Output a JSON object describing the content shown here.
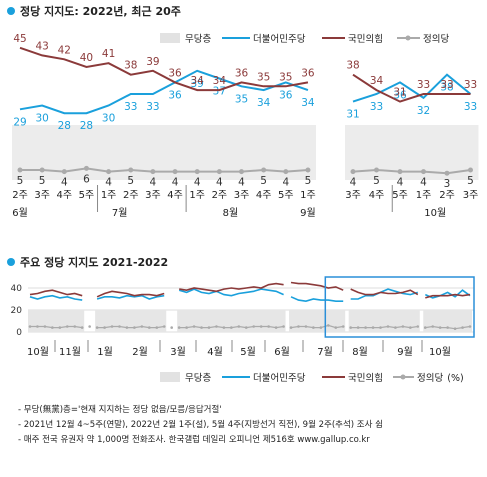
{
  "colors": {
    "blue": "#1aa0dc",
    "red": "#8b3a3a",
    "gray": "#aaaaaa",
    "band": "#e8e8e8",
    "text": "#222222",
    "box": "#2a8fd8"
  },
  "legend": {
    "nonpartisan": "무당층",
    "democratic": "더불어민주당",
    "ppp": "국민의힘",
    "justice": "정의당",
    "unit": "(%)"
  },
  "footnotes": [
    "- 무당(無黨)층='현재 지지하는 정당 없음/모름/응답거절'",
    "- 2021년 12월 4~5주(연말), 2022년 2월 1주(설), 5월 4주(지방선거 직전), 9월 2주(추석) 조사 쉼",
    "- 매주 전국 유권자 약 1,000명 전화조사. 한국갤럽 데일리 오피니언 제516호 www.gallup.co.kr"
  ],
  "chart_data": [
    {
      "type": "line",
      "title": "정당 지지도: 2022년, 최근 20주",
      "legend_placement": "top-right",
      "x": [
        "2주",
        "3주",
        "4주",
        "5주",
        "1주",
        "2주",
        "3주",
        "4주",
        "1주",
        "2주",
        "3주",
        "4주",
        "5주",
        "1주",
        "3주",
        "4주",
        "5주",
        "1주",
        "2주",
        "3주"
      ],
      "month_labels": [
        {
          "label": "6월",
          "index": 0
        },
        {
          "label": "7월",
          "index": 4.5
        },
        {
          "label": "8월",
          "index": 9.5
        },
        {
          "label": "9월",
          "index": 13
        },
        {
          "label": "10월",
          "index": 17.5
        }
      ],
      "gap_after_index": 13,
      "series": [
        {
          "name": "더불어민주당",
          "color": "#1aa0dc",
          "values": [
            29,
            30,
            28,
            28,
            30,
            33,
            33,
            36,
            39,
            37,
            35,
            34,
            36,
            34,
            31,
            33,
            36,
            32,
            38,
            33
          ]
        },
        {
          "name": "국민의힘",
          "color": "#8b3a3a",
          "values": [
            45,
            43,
            42,
            40,
            41,
            38,
            39,
            36,
            34,
            34,
            36,
            35,
            35,
            36,
            38,
            34,
            31,
            33,
            33,
            33
          ]
        },
        {
          "name": "정의당",
          "color": "#aaaaaa",
          "values": [
            5,
            5,
            4,
            6,
            4,
            5,
            4,
            4,
            4,
            4,
            4,
            5,
            4,
            5,
            4,
            5,
            4,
            4,
            3,
            5
          ]
        }
      ]
    },
    {
      "type": "line",
      "title": "주요 정당 지지도 2021-2022",
      "legend_placement": "bottom",
      "y_ticks": [
        0,
        20,
        40
      ],
      "ylim": [
        0,
        50
      ],
      "month_labels": [
        "10월",
        "11월",
        "1월",
        "2월",
        "3월",
        "4월",
        "5월",
        "6월",
        "7월",
        "8월",
        "9월",
        "10월"
      ],
      "series": [
        {
          "name": "더불어민주당",
          "color": "#1aa0dc",
          "values": [
            32,
            30,
            32,
            33,
            31,
            32,
            30,
            29,
            33,
            30,
            32,
            32,
            31,
            33,
            32,
            33,
            30,
            32,
            33,
            35,
            38,
            36,
            39,
            36,
            35,
            37,
            34,
            33,
            35,
            36,
            37,
            39,
            38,
            37,
            34,
            32,
            29,
            28,
            30,
            29,
            29,
            28,
            28,
            30,
            30,
            33,
            33,
            36,
            39,
            37,
            35,
            34,
            36,
            34,
            31,
            33,
            36,
            32,
            38,
            33
          ]
        },
        {
          "name": "국민의힘",
          "color": "#8b3a3a",
          "values": [
            34,
            35,
            37,
            38,
            36,
            34,
            35,
            33,
            30,
            32,
            35,
            37,
            36,
            35,
            33,
            34,
            34,
            33,
            35,
            37,
            39,
            38,
            40,
            39,
            38,
            37,
            39,
            40,
            39,
            40,
            41,
            40,
            43,
            44,
            43,
            45,
            44,
            44,
            43,
            42,
            40,
            41,
            38,
            39,
            36,
            34,
            34,
            36,
            35,
            35,
            36,
            38,
            34,
            31,
            33,
            33,
            33,
            34,
            33,
            34
          ]
        },
        {
          "name": "정의당",
          "color": "#aaaaaa",
          "values": [
            5,
            5,
            5,
            4,
            4,
            5,
            5,
            4,
            5,
            4,
            4,
            5,
            5,
            4,
            4,
            5,
            4,
            4,
            5,
            4,
            4,
            4,
            5,
            4,
            4,
            5,
            4,
            4,
            5,
            4,
            5,
            5,
            5,
            4,
            5,
            4,
            5,
            5,
            4,
            4,
            6,
            4,
            5,
            4,
            4,
            4,
            4,
            4,
            5,
            4,
            5,
            4,
            5,
            4,
            5,
            4,
            4,
            3,
            4,
            5
          ]
        }
      ]
    }
  ]
}
